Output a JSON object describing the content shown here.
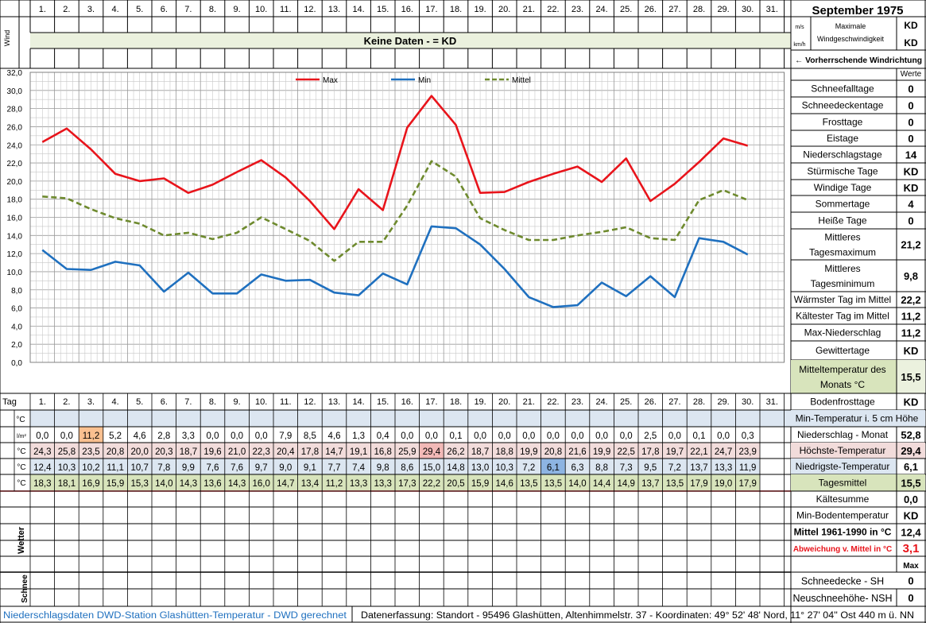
{
  "month_title": "September 1975",
  "labels": {
    "wind_side": "Wind",
    "no_data": "Keine Daten -  = KD",
    "unit_ms": "m/s",
    "unit_kmh": "km/h",
    "max_wind_1": "Maximale",
    "max_wind_2": "Windgeschwindigkeit",
    "max_wind_value": "KD",
    "max_wind_value2": "KD",
    "wind_direction": "← Vorherrschende Windrichtung",
    "werte": "Werte",
    "tag": "Tag",
    "unit_c": "°C",
    "unit_lm2": "l/m²",
    "wetter": "Wetter",
    "schnee": "Schnee",
    "footer_left": "Niederschlagsdaten DWD-Station Glashütten-Temperatur -  DWD gerechnet",
    "footer_right": "Datenerfassung: Standort -  95496  Glashütten, Altenhimmelstr. 37 - Koordinaten:  49° 52' 48' Nord,   11° 27' 04'' Ost   440 m ü. NN"
  },
  "days": [
    "1.",
    "2.",
    "3.",
    "4.",
    "5.",
    "6.",
    "7.",
    "8.",
    "9.",
    "10.",
    "11.",
    "12.",
    "13.",
    "14.",
    "15.",
    "16.",
    "17.",
    "18.",
    "19.",
    "20.",
    "21.",
    "22.",
    "23.",
    "24.",
    "25.",
    "26.",
    "27.",
    "28.",
    "29.",
    "30.",
    "31."
  ],
  "chart_data": {
    "type": "line",
    "x": [
      1,
      2,
      3,
      4,
      5,
      6,
      7,
      8,
      9,
      10,
      11,
      12,
      13,
      14,
      15,
      16,
      17,
      18,
      19,
      20,
      21,
      22,
      23,
      24,
      25,
      26,
      27,
      28,
      29,
      30
    ],
    "series": [
      {
        "name": "Max",
        "color": "#e8141b",
        "values": [
          24.3,
          25.8,
          23.5,
          20.8,
          20.0,
          20.3,
          18.7,
          19.6,
          21.0,
          22.3,
          20.4,
          17.8,
          14.7,
          19.1,
          16.8,
          25.9,
          29.4,
          26.2,
          18.7,
          18.8,
          19.9,
          20.8,
          21.6,
          19.9,
          22.5,
          17.8,
          19.7,
          22.1,
          24.7,
          23.9
        ]
      },
      {
        "name": "Min",
        "color": "#1f70bf",
        "values": [
          12.4,
          10.3,
          10.2,
          11.1,
          10.7,
          7.8,
          9.9,
          7.6,
          7.6,
          9.7,
          9.0,
          9.1,
          7.7,
          7.4,
          9.8,
          8.6,
          15.0,
          14.8,
          13.0,
          10.3,
          7.2,
          6.1,
          6.3,
          8.8,
          7.3,
          9.5,
          7.2,
          13.7,
          13.3,
          11.9
        ]
      },
      {
        "name": "Mittel",
        "color": "#6e8a2e",
        "values": [
          18.3,
          18.1,
          16.9,
          15.9,
          15.3,
          14.0,
          14.3,
          13.6,
          14.3,
          16.0,
          14.7,
          13.4,
          11.2,
          13.3,
          13.3,
          17.3,
          22.2,
          20.5,
          15.9,
          14.6,
          13.5,
          13.5,
          14.0,
          14.4,
          14.9,
          13.7,
          13.5,
          17.9,
          19.0,
          17.9
        ]
      }
    ],
    "ylim": [
      0,
      32
    ],
    "yticks": [
      "0,0",
      "2,0",
      "4,0",
      "6,0",
      "8,0",
      "10,0",
      "12,0",
      "14,0",
      "16,0",
      "18,0",
      "20,0",
      "22,0",
      "24,0",
      "26,0",
      "28,0",
      "30,0",
      "32,0"
    ],
    "grid": true,
    "legend": "top"
  },
  "rows": {
    "niederschlag": [
      "0,0",
      "0,0",
      "11,2",
      "5,2",
      "4,6",
      "2,8",
      "3,3",
      "0,0",
      "0,0",
      "0,0",
      "7,9",
      "8,5",
      "4,6",
      "1,3",
      "0,4",
      "0,0",
      "0,0",
      "0,1",
      "0,0",
      "0,0",
      "0,0",
      "0,0",
      "0,0",
      "0,0",
      "0,0",
      "2,5",
      "0,0",
      "0,1",
      "0,0",
      "0,3"
    ],
    "max": [
      "24,3",
      "25,8",
      "23,5",
      "20,8",
      "20,0",
      "20,3",
      "18,7",
      "19,6",
      "21,0",
      "22,3",
      "20,4",
      "17,8",
      "14,7",
      "19,1",
      "16,8",
      "25,9",
      "29,4",
      "26,2",
      "18,7",
      "18,8",
      "19,9",
      "20,8",
      "21,6",
      "19,9",
      "22,5",
      "17,8",
      "19,7",
      "22,1",
      "24,7",
      "23,9"
    ],
    "min": [
      "12,4",
      "10,3",
      "10,2",
      "11,1",
      "10,7",
      "7,8",
      "9,9",
      "7,6",
      "7,6",
      "9,7",
      "9,0",
      "9,1",
      "7,7",
      "7,4",
      "9,8",
      "8,6",
      "15,0",
      "14,8",
      "13,0",
      "10,3",
      "7,2",
      "6,1",
      "6,3",
      "8,8",
      "7,3",
      "9,5",
      "7,2",
      "13,7",
      "13,3",
      "11,9"
    ],
    "mittel": [
      "18,3",
      "18,1",
      "16,9",
      "15,9",
      "15,3",
      "14,0",
      "14,3",
      "13,6",
      "14,3",
      "16,0",
      "14,7",
      "13,4",
      "11,2",
      "13,3",
      "13,3",
      "17,3",
      "22,2",
      "20,5",
      "15,9",
      "14,6",
      "13,5",
      "13,5",
      "14,0",
      "14,4",
      "14,9",
      "13,7",
      "13,5",
      "17,9",
      "19,0",
      "17,9"
    ]
  },
  "stats_top": [
    {
      "label": "Schneefalltage",
      "value": "0"
    },
    {
      "label": "Schneedeckentage",
      "value": "0"
    },
    {
      "label": "Frosttage",
      "value": "0"
    },
    {
      "label": "Eistage",
      "value": "0"
    },
    {
      "label": "Niederschlagstage",
      "value": "14"
    },
    {
      "label": "Stürmische Tage",
      "value": "KD"
    },
    {
      "label": "Windige Tage",
      "value": "KD"
    },
    {
      "label": "Sommertage",
      "value": "4"
    },
    {
      "label": "Heiße Tage",
      "value": "0"
    },
    {
      "label": "Mittleres Tagesmaximum",
      "label1": "Mittleres",
      "label2": "Tagesmaximum",
      "value": "21,2"
    },
    {
      "label": "Mittleres Tagesminimum",
      "label1": "Mittleres",
      "label2": "Tagesminimum",
      "value": "9,8"
    },
    {
      "label": "Wärmster Tag im Mittel",
      "value": "22,2"
    },
    {
      "label": "Kältester Tag im Mittel",
      "value": "11,2"
    },
    {
      "label": "Max-Niederschlag",
      "value": "11,2"
    },
    {
      "label": "Gewittertage",
      "value": "KD"
    },
    {
      "label": "Mitteltemperatur des Monats °C",
      "label1": "Mitteltemperatur des",
      "label2": "Monats °C",
      "value": "15,5"
    },
    {
      "label": "Bodenfrosttage",
      "value": "KD"
    }
  ],
  "stats_bottom": [
    {
      "label": "Min-Temperatur i. 5 cm Höhe",
      "value": ""
    },
    {
      "label": "Niederschlag - Monat",
      "value": "52,8"
    },
    {
      "label": "Höchste-Temperatur",
      "value": "29,4"
    },
    {
      "label": "Niedrigste-Temperatur",
      "value": "6,1"
    },
    {
      "label": "Tagesmittel",
      "value": "15,5"
    },
    {
      "label": "Kältesumme",
      "value": "0,0"
    },
    {
      "label": "Min-Bodentemperatur",
      "value": "KD"
    },
    {
      "label": "Mittel 1961-1990 in °C",
      "value": "12,4"
    },
    {
      "label": "Abweichung v. Mittel in °C",
      "value": "3,1"
    },
    {
      "label": "",
      "value": "Max"
    },
    {
      "label": "Schneedecke -   SH",
      "value": "0"
    },
    {
      "label": "Neuschneehöhe-  NSH",
      "value": "0"
    }
  ],
  "colors": {
    "green": "#ebf1de",
    "blue_row": "#dce6f1",
    "highlight_orange": "#fac090",
    "highlight_pink": "#f2b9b7",
    "highlight_blue": "#8db4e2",
    "max_row": "#f2dcdb",
    "min_row": "#dce6f1",
    "mittel_row": "#d8e4bc",
    "red_text": "#e8141b"
  }
}
